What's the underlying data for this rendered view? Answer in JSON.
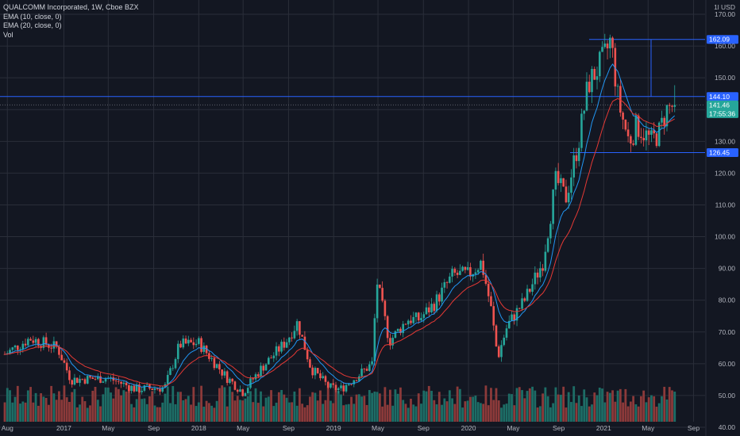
{
  "header": {
    "title": "QUALCOMM Incorporated, 1W, Cboe BZX",
    "indicators": [
      "EMA (10, close, 0)",
      "EMA (20, close, 0)",
      "Vol"
    ],
    "currency": "USD",
    "settings_glyph": "1l"
  },
  "chart_data": {
    "type": "candlestick",
    "title": "QUALCOMM Incorporated, 1W, Cboe BZX",
    "interval": "1W",
    "y_axis": {
      "position": "right",
      "range": [
        38,
        172
      ],
      "ticks": [
        40,
        50,
        60,
        70,
        80,
        90,
        100,
        110,
        120,
        130,
        140,
        150,
        160,
        170
      ],
      "tick_labels": [
        "40.00",
        "50.00",
        "60.00",
        "70.00",
        "80.00",
        "90.00",
        "100.00",
        "110.00",
        "120.00",
        "130.00",
        "140.00",
        "150.00",
        "160.00",
        "170.00"
      ]
    },
    "x_axis": {
      "position": "bottom",
      "ticks": [
        {
          "label": "Aug",
          "date": "2016-08-01"
        },
        {
          "label": "2017",
          "date": "2017-01-01"
        },
        {
          "label": "May",
          "date": "2017-05-01"
        },
        {
          "label": "Sep",
          "date": "2017-09-01"
        },
        {
          "label": "2018",
          "date": "2018-01-01"
        },
        {
          "label": "May",
          "date": "2018-05-01"
        },
        {
          "label": "Sep",
          "date": "2018-09-01"
        },
        {
          "label": "2019",
          "date": "2019-01-01"
        },
        {
          "label": "May",
          "date": "2019-05-01"
        },
        {
          "label": "Sep",
          "date": "2019-09-01"
        },
        {
          "label": "2020",
          "date": "2020-01-01"
        },
        {
          "label": "May",
          "date": "2020-05-01"
        },
        {
          "label": "Sep",
          "date": "2020-09-01"
        },
        {
          "label": "2021",
          "date": "2021-01-01"
        },
        {
          "label": "May",
          "date": "2021-05-01"
        },
        {
          "label": "Sep",
          "date": "2021-09-01"
        }
      ]
    },
    "grid": true,
    "legend": "top-left",
    "colors": {
      "background": "#131722",
      "grid": "#2a2e39",
      "up": "#26a69a",
      "down": "#ef5350",
      "vol_up": "#1d6d66",
      "vol_down": "#8c3a3a",
      "ema10": "#2196f3",
      "ema20": "#e53935",
      "level": "#2962ff",
      "last_price": "#26a69a",
      "axis_text": "#b2b5be"
    },
    "series": [
      {
        "name": "EMA (10, close, 0)",
        "color": "#2196f3"
      },
      {
        "name": "EMA (20, close, 0)",
        "color": "#e53935"
      },
      {
        "name": "Vol",
        "color": "#26a69a"
      }
    ],
    "price_anchors": [
      [
        "2016-07-25",
        63.0
      ],
      [
        "2016-10-01",
        68.0
      ],
      [
        "2016-12-15",
        65.0
      ],
      [
        "2017-01-20",
        55.0
      ],
      [
        "2017-05-01",
        55.5
      ],
      [
        "2017-07-15",
        52.0
      ],
      [
        "2017-10-01",
        52.5
      ],
      [
        "2017-11-10",
        66.0
      ],
      [
        "2018-01-01",
        66.5
      ],
      [
        "2018-03-15",
        56.0
      ],
      [
        "2018-05-01",
        51.0
      ],
      [
        "2018-06-15",
        58.0
      ],
      [
        "2018-08-25",
        67.0
      ],
      [
        "2018-09-25",
        73.0
      ],
      [
        "2018-11-01",
        58.5
      ],
      [
        "2018-12-20",
        52.5
      ],
      [
        "2019-01-20",
        52.0
      ],
      [
        "2019-03-15",
        57.0
      ],
      [
        "2019-04-15",
        60.0
      ],
      [
        "2019-04-28",
        86.0
      ],
      [
        "2019-06-01",
        67.0
      ],
      [
        "2019-07-20",
        74.0
      ],
      [
        "2019-08-20",
        74.0
      ],
      [
        "2019-10-01",
        79.0
      ],
      [
        "2019-11-20",
        88.0
      ],
      [
        "2020-01-01",
        88.0
      ],
      [
        "2020-02-05",
        92.0
      ],
      [
        "2020-03-01",
        78.0
      ],
      [
        "2020-03-20",
        62.0
      ],
      [
        "2020-04-15",
        72.0
      ],
      [
        "2020-06-01",
        80.0
      ],
      [
        "2020-07-20",
        92.0
      ],
      [
        "2020-08-25",
        118.0
      ],
      [
        "2020-09-20",
        112.0
      ],
      [
        "2020-10-25",
        130.0
      ],
      [
        "2020-11-20",
        148.0
      ],
      [
        "2021-01-01",
        156.0
      ],
      [
        "2021-01-20",
        162.0
      ],
      [
        "2021-02-10",
        142.0
      ],
      [
        "2021-03-10",
        130.0
      ],
      [
        "2021-04-01",
        135.0
      ],
      [
        "2021-05-10",
        130.0
      ],
      [
        "2021-06-01",
        133.0
      ],
      [
        "2021-06-20",
        140.0
      ],
      [
        "2021-07-12",
        141.46
      ]
    ],
    "annotations": {
      "resistance_1": 162.09,
      "resistance_2": 144.1,
      "support": 126.45,
      "last_price": 141.46,
      "countdown": "17:55:36"
    },
    "price_tags": [
      {
        "label": "162.09",
        "value": 162.09,
        "color": "#2962ff"
      },
      {
        "label": "144.10",
        "value": 144.1,
        "color": "#2962ff"
      },
      {
        "label": "141.46",
        "value": 141.46,
        "color": "#26a69a",
        "sub": "17:55:36"
      },
      {
        "label": "126.45",
        "value": 126.45,
        "color": "#2962ff"
      }
    ]
  }
}
